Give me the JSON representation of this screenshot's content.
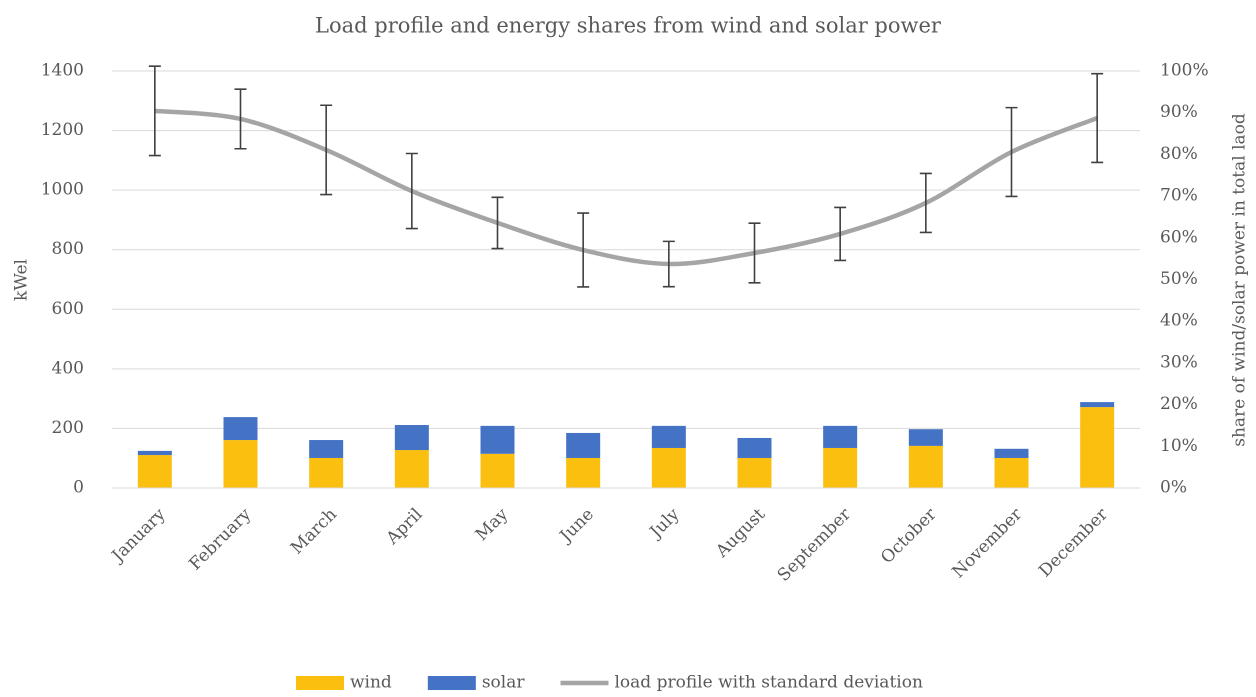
{
  "chart_data": {
    "type": "combo",
    "title": "Load profile and energy shares from wind and solar power",
    "ylabel": "kWel",
    "y2label": "share of wind/solar power  in total laod",
    "categories": [
      "January",
      "February",
      "March",
      "April",
      "May",
      "June",
      "July",
      "August",
      "September",
      "October",
      "November",
      "December"
    ],
    "series": [
      {
        "name": "wind",
        "type": "bar",
        "axis": "y2",
        "stacked": true,
        "color": "#fbbf0f",
        "values": [
          7.9,
          11.5,
          7.2,
          9.1,
          8.2,
          7.2,
          9.6,
          7.2,
          9.6,
          10.1,
          7.2,
          19.4
        ]
      },
      {
        "name": "solar",
        "type": "bar",
        "axis": "y2",
        "stacked": true,
        "color": "#4472c4",
        "values": [
          1.0,
          5.5,
          4.3,
          6.0,
          6.7,
          6.0,
          5.3,
          4.8,
          5.3,
          4.0,
          2.2,
          1.2
        ]
      },
      {
        "name": "load profile with standard deviation",
        "type": "line",
        "color": "#a5a5a5",
        "values": [
          1266,
          1239,
          1135,
          997,
          890,
          799,
          752,
          789,
          853,
          957,
          1128,
          1242
        ],
        "errors": [
          150,
          100,
          150,
          126,
          86,
          124,
          76,
          100,
          89,
          99,
          149,
          149
        ]
      }
    ],
    "ylim": [
      0,
      1400
    ],
    "yticks": [
      0,
      200,
      400,
      600,
      800,
      1000,
      1200,
      1400
    ],
    "y2lim": [
      0,
      100
    ],
    "y2ticks": [
      {
        "value": 0,
        "label": "0%"
      },
      {
        "value": 10,
        "label": "10%"
      },
      {
        "value": 20,
        "label": "20%"
      },
      {
        "value": 30,
        "label": "30%"
      },
      {
        "value": 40,
        "label": "40%"
      },
      {
        "value": 50,
        "label": "50%"
      },
      {
        "value": 60,
        "label": "60%"
      },
      {
        "value": 70,
        "label": "70%"
      },
      {
        "value": 80,
        "label": "80%"
      },
      {
        "value": 90,
        "label": "90%"
      },
      {
        "value": 100,
        "label": "100%"
      }
    ],
    "grid": true,
    "legend": "bottom"
  }
}
